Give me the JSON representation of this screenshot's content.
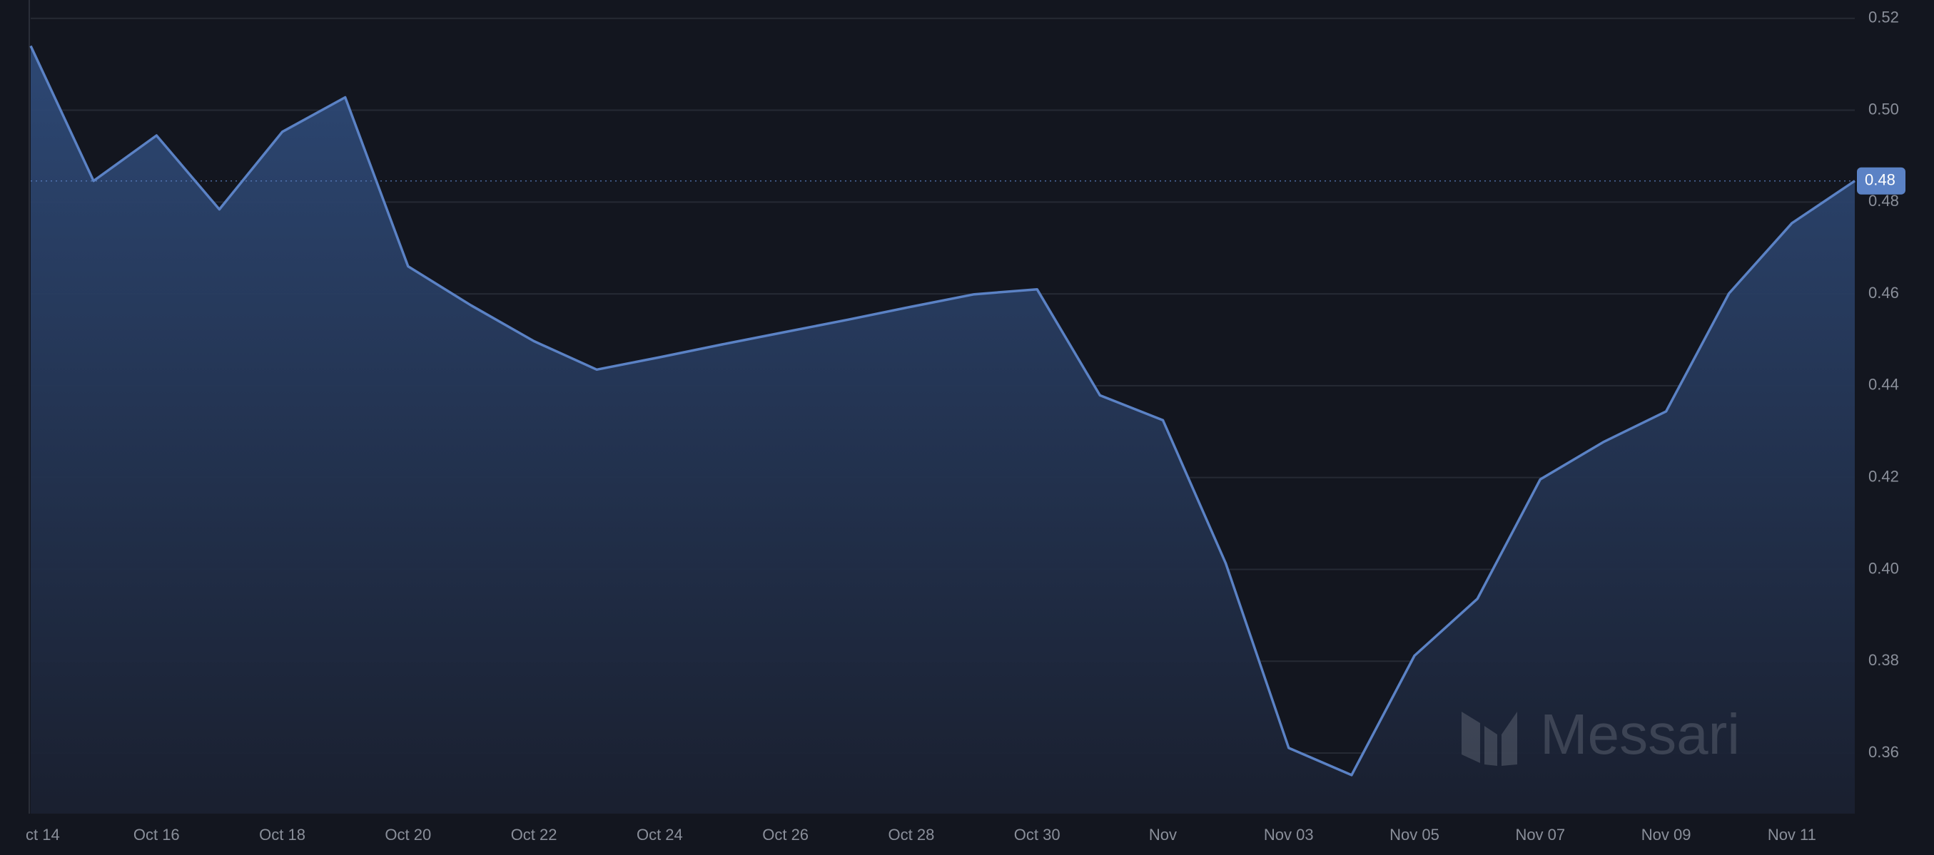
{
  "chart_data": {
    "type": "area",
    "watermark": "Messari",
    "categories": [
      "ct 14",
      null,
      "Oct 16",
      null,
      "Oct 18",
      null,
      "Oct 20",
      null,
      "Oct 22",
      null,
      "Oct 24",
      null,
      "Oct 26",
      null,
      "Oct 28",
      null,
      "Oct 30",
      null,
      "Nov",
      null,
      "Nov 03",
      null,
      "Nov 05",
      null,
      "Nov 07",
      null,
      "Nov 09",
      null,
      "Nov 11",
      null
    ],
    "series": [
      {
        "color": "#5b82c5",
        "values": [
          0.514,
          0.4846,
          0.4945,
          0.4784,
          0.4953,
          0.5028,
          0.466,
          0.4575,
          0.4497,
          0.4435,
          0.4462,
          0.449,
          0.4517,
          0.4544,
          0.4572,
          0.4599,
          0.461,
          0.4379,
          0.4325,
          0.4013,
          0.3611,
          0.3552,
          0.3812,
          0.3936,
          0.4196,
          0.4277,
          0.4344,
          0.4601,
          0.4754,
          0.4846
        ],
        "value_labels": [
          null,
          null,
          null,
          null,
          null,
          null,
          null,
          null,
          null,
          null,
          null,
          null,
          null,
          null,
          null,
          null,
          null,
          null,
          null,
          null,
          null,
          null,
          null,
          null,
          null,
          null,
          null,
          null,
          null,
          "0.48"
        ]
      }
    ],
    "ylim": [
      0.3468,
      0.524
    ],
    "yticks": [
      0.36,
      0.38,
      {
        "value": 0.4,
        "label": "0.40"
      },
      0.42,
      0.44,
      0.46,
      0.48,
      {
        "value": 0.5,
        "label": "0.50"
      },
      0.52
    ],
    "grid": true
  }
}
